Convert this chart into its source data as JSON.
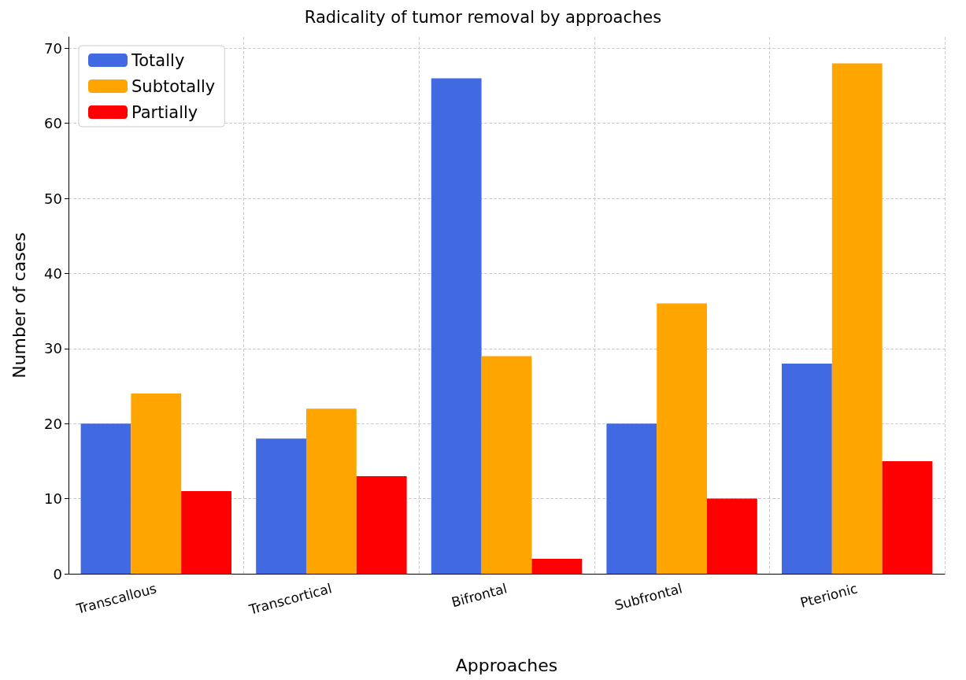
{
  "chart_data": {
    "type": "bar",
    "title": "Radicality of tumor removal by approaches",
    "xlabel": "Approaches",
    "ylabel": "Number of cases",
    "categories": [
      "Transcallous",
      "Transcortical",
      "Bifrontal",
      "Subfrontal",
      "Pterionic"
    ],
    "series": [
      {
        "name": "Totally",
        "color": "#4169e1",
        "values": [
          20,
          18,
          66,
          20,
          28
        ]
      },
      {
        "name": "Subtotally",
        "color": "#ffa500",
        "values": [
          24,
          22,
          29,
          36,
          68
        ]
      },
      {
        "name": "Partially",
        "color": "#ff0000",
        "values": [
          11,
          13,
          2,
          10,
          15
        ]
      }
    ],
    "ylim": [
      0,
      71.5
    ],
    "yticks": [
      0,
      10,
      20,
      30,
      40,
      50,
      60,
      70
    ],
    "grid": true,
    "legend": "top left"
  }
}
